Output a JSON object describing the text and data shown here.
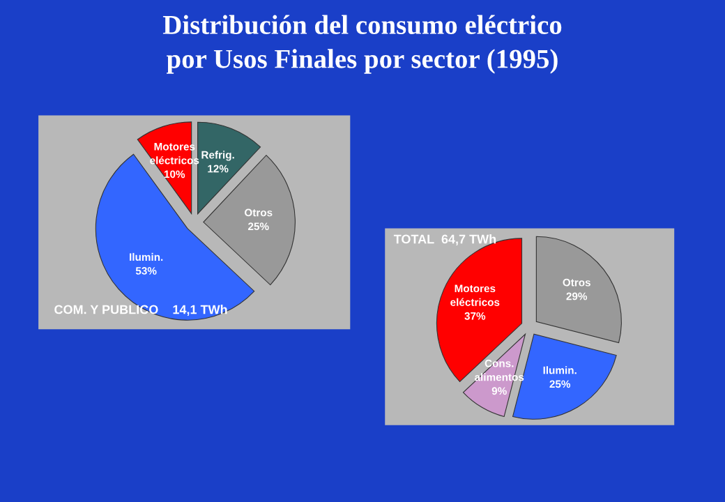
{
  "chart_data": [
    {
      "type": "pie",
      "title": "Distribución del consumo eléctrico\npor Usos Finales por sector (1995)",
      "categories": [
        "Refrig.",
        "Otros",
        "Ilumin.",
        "Motores\neléctricos"
      ],
      "values": [
        12,
        25,
        53,
        10
      ],
      "value_labels": [
        "12%",
        "25%",
        "53%",
        "10%"
      ],
      "colors": [
        "#336666",
        "#999999",
        "#3366ff",
        "#ff0000"
      ],
      "annotations": [
        "COM. Y PUBLICO    14,1 TWh"
      ]
    },
    {
      "type": "pie",
      "categories": [
        "Otros",
        "Ilumin.",
        "Cons.\nalimentos",
        "Motores\neléctricos"
      ],
      "values": [
        29,
        25,
        9,
        37
      ],
      "value_labels": [
        "29%",
        "25%",
        "9%",
        "37%"
      ],
      "colors": [
        "#999999",
        "#3366ff",
        "#cc99cc",
        "#ff0000"
      ],
      "annotations": [
        "TOTAL  64,7 TWh"
      ]
    }
  ]
}
